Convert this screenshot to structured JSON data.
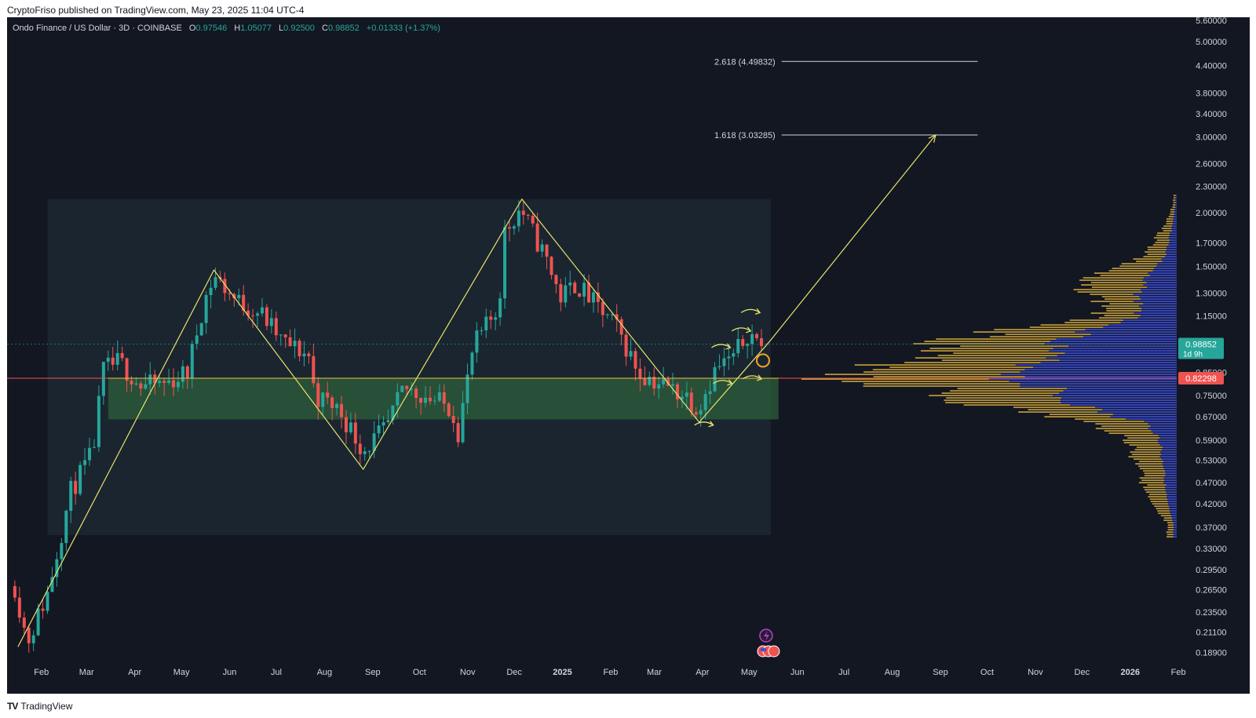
{
  "publish_line": "CryptoFriso published on TradingView.com, May 23, 2025 11:04 UTC-4",
  "header": {
    "symbol": "Ondo Finance / US Dollar · 3D · COINBASE",
    "o_label": "O",
    "o_value": "0.97546",
    "h_label": "H",
    "h_value": "1.05077",
    "l_label": "L",
    "l_value": "0.92500",
    "c_label": "C",
    "c_value": "0.98852",
    "change": "+0.01333 (+1.37%)"
  },
  "footer_logo": "TradingView",
  "colors": {
    "background": "#131722",
    "up": "#26a69a",
    "down": "#ef5350",
    "zigzag": "#e8e46a",
    "resistance_line": "#ef5350",
    "support_line": "#f0c040",
    "zone_green": "#2e5d3a",
    "range_box": "#1a2530",
    "profile_gold": "#c9a13a",
    "profile_blue": "#3d4fd8"
  },
  "chart_data": {
    "type": "candlestick",
    "scale": "log",
    "ylim": [
      0.175,
      5.7
    ],
    "x_range": [
      "2024-01-20",
      "2026-02-10"
    ],
    "y_ticks": [
      "5.60000",
      "5.00000",
      "4.40000",
      "3.80000",
      "3.40000",
      "3.00000",
      "2.60000",
      "2.30000",
      "2.00000",
      "1.70000",
      "1.50000",
      "1.30000",
      "1.15000",
      "0.98852",
      "0.85000",
      "0.82298",
      "0.75000",
      "0.67000",
      "0.59000",
      "0.53000",
      "0.47000",
      "0.42000",
      "0.37000",
      "0.33000",
      "0.29500",
      "0.26500",
      "0.23500",
      "0.21100",
      "0.18900"
    ],
    "x_ticks": [
      {
        "label": "Feb",
        "date": "2024-02-01"
      },
      {
        "label": "Mar",
        "date": "2024-03-01"
      },
      {
        "label": "Apr",
        "date": "2024-04-01"
      },
      {
        "label": "May",
        "date": "2024-05-01"
      },
      {
        "label": "Jun",
        "date": "2024-06-01"
      },
      {
        "label": "Jul",
        "date": "2024-07-01"
      },
      {
        "label": "Aug",
        "date": "2024-08-01"
      },
      {
        "label": "Sep",
        "date": "2024-09-01"
      },
      {
        "label": "Oct",
        "date": "2024-10-01"
      },
      {
        "label": "Nov",
        "date": "2024-11-01"
      },
      {
        "label": "Dec",
        "date": "2024-12-01"
      },
      {
        "label": "2025",
        "date": "2025-01-01"
      },
      {
        "label": "Feb",
        "date": "2025-02-01"
      },
      {
        "label": "Mar",
        "date": "2025-03-01"
      },
      {
        "label": "Apr",
        "date": "2025-04-01"
      },
      {
        "label": "May",
        "date": "2025-05-01"
      },
      {
        "label": "Jun",
        "date": "2025-06-01"
      },
      {
        "label": "Jul",
        "date": "2025-07-01"
      },
      {
        "label": "Aug",
        "date": "2025-08-01"
      },
      {
        "label": "Sep",
        "date": "2025-09-01"
      },
      {
        "label": "Oct",
        "date": "2025-10-01"
      },
      {
        "label": "Nov",
        "date": "2025-11-01"
      },
      {
        "label": "Dec",
        "date": "2025-12-01"
      },
      {
        "label": "2026",
        "date": "2026-01-01"
      },
      {
        "label": "Feb",
        "date": "2026-02-01"
      }
    ],
    "price_series": [
      {
        "date": "2024-01-25",
        "close": 0.27
      },
      {
        "date": "2024-02-02",
        "close": 0.2
      },
      {
        "date": "2024-02-15",
        "close": 0.26
      },
      {
        "date": "2024-03-01",
        "close": 0.45
      },
      {
        "date": "2024-03-15",
        "close": 0.55
      },
      {
        "date": "2024-03-22",
        "close": 0.86
      },
      {
        "date": "2024-04-01",
        "close": 0.9
      },
      {
        "date": "2024-04-15",
        "close": 0.79
      },
      {
        "date": "2024-05-01",
        "close": 0.8
      },
      {
        "date": "2024-05-15",
        "close": 0.85
      },
      {
        "date": "2024-05-25",
        "close": 1.22
      },
      {
        "date": "2024-06-01",
        "close": 1.43
      },
      {
        "date": "2024-06-15",
        "close": 1.25
      },
      {
        "date": "2024-07-01",
        "close": 1.17
      },
      {
        "date": "2024-07-15",
        "close": 1.0
      },
      {
        "date": "2024-08-01",
        "close": 0.93
      },
      {
        "date": "2024-08-05",
        "close": 0.75
      },
      {
        "date": "2024-08-20",
        "close": 0.7
      },
      {
        "date": "2024-09-05",
        "close": 0.56
      },
      {
        "date": "2024-09-20",
        "close": 0.63
      },
      {
        "date": "2024-10-01",
        "close": 0.78
      },
      {
        "date": "2024-10-15",
        "close": 0.75
      },
      {
        "date": "2024-11-01",
        "close": 0.7
      },
      {
        "date": "2024-11-05",
        "close": 0.62
      },
      {
        "date": "2024-11-15",
        "close": 0.98
      },
      {
        "date": "2024-12-01",
        "close": 1.2
      },
      {
        "date": "2024-12-05",
        "close": 1.8
      },
      {
        "date": "2024-12-15",
        "close": 2.05
      },
      {
        "date": "2025-01-01",
        "close": 1.55
      },
      {
        "date": "2025-01-10",
        "close": 1.27
      },
      {
        "date": "2025-01-20",
        "close": 1.37
      },
      {
        "date": "2025-02-01",
        "close": 1.22
      },
      {
        "date": "2025-02-15",
        "close": 1.08
      },
      {
        "date": "2025-03-01",
        "close": 0.85
      },
      {
        "date": "2025-03-15",
        "close": 0.8
      },
      {
        "date": "2025-04-01",
        "close": 0.75
      },
      {
        "date": "2025-04-08",
        "close": 0.7
      },
      {
        "date": "2025-04-20",
        "close": 0.87
      },
      {
        "date": "2025-05-01",
        "close": 0.92
      },
      {
        "date": "2025-05-10",
        "close": 1.05
      },
      {
        "date": "2025-05-20",
        "close": 0.98852
      }
    ],
    "candle_seed": 11,
    "zigzag_pattern": [
      {
        "date": "2024-01-27",
        "price": 0.195
      },
      {
        "date": "2024-06-01",
        "price": 1.47
      },
      {
        "date": "2024-09-05",
        "price": 0.505
      },
      {
        "date": "2024-12-16",
        "price": 2.15
      },
      {
        "date": "2025-04-09",
        "price": 0.65
      },
      {
        "date": "2025-05-24",
        "price": 1.0
      }
    ],
    "projection": [
      {
        "date": "2025-05-24",
        "price": 1.0
      },
      {
        "date": "2025-09-08",
        "price": 3.03285
      }
    ],
    "fib_levels": [
      {
        "label": "2.618 (4.49832)",
        "price": 4.49832,
        "from": "2025-06-01",
        "to": "2025-10-05"
      },
      {
        "label": "1.618 (3.03285)",
        "price": 3.03285,
        "from": "2025-06-01",
        "to": "2025-10-05"
      }
    ],
    "range_box": {
      "from": "2024-02-15",
      "to": "2025-05-25",
      "top": 2.15,
      "bottom": 0.355
    },
    "support_zone": {
      "from": "2024-03-25",
      "to": "2025-05-30",
      "top": 0.823,
      "bottom": 0.66
    },
    "resistance_line_price": 0.82298,
    "current_price": {
      "value": "0.98852",
      "price": 0.98852,
      "countdown": "1d 9h"
    },
    "resistance_label": "0.82298",
    "volume_profile": {
      "poc_price": 0.82,
      "bins": [
        {
          "price": 2.1,
          "width": 0.01
        },
        {
          "price": 1.9,
          "width": 0.03
        },
        {
          "price": 1.75,
          "width": 0.06
        },
        {
          "price": 1.6,
          "width": 0.09
        },
        {
          "price": 1.5,
          "width": 0.17
        },
        {
          "price": 1.4,
          "width": 0.3
        },
        {
          "price": 1.3,
          "width": 0.25
        },
        {
          "price": 1.2,
          "width": 0.2
        },
        {
          "price": 1.12,
          "width": 0.28
        },
        {
          "price": 1.05,
          "width": 0.55
        },
        {
          "price": 0.98,
          "width": 0.7
        },
        {
          "price": 0.92,
          "width": 0.78
        },
        {
          "price": 0.86,
          "width": 0.85
        },
        {
          "price": 0.82,
          "width": 1.0
        },
        {
          "price": 0.78,
          "width": 0.72
        },
        {
          "price": 0.74,
          "width": 0.66
        },
        {
          "price": 0.7,
          "width": 0.5
        },
        {
          "price": 0.66,
          "width": 0.3
        },
        {
          "price": 0.62,
          "width": 0.18
        },
        {
          "price": 0.58,
          "width": 0.13
        },
        {
          "price": 0.54,
          "width": 0.13
        },
        {
          "price": 0.5,
          "width": 0.09
        },
        {
          "price": 0.46,
          "width": 0.1
        },
        {
          "price": 0.42,
          "width": 0.08
        },
        {
          "price": 0.38,
          "width": 0.03
        }
      ]
    },
    "annotations": [
      {
        "type": "circle",
        "date": "2025-05-20",
        "price": 0.905
      },
      {
        "type": "curved-arrow",
        "date": "2025-04-12",
        "price": 0.64
      },
      {
        "type": "curved-arrow",
        "date": "2025-04-23",
        "price": 0.97
      },
      {
        "type": "curved-arrow",
        "date": "2025-05-06",
        "price": 1.06
      },
      {
        "type": "curved-arrow",
        "date": "2025-05-12",
        "price": 1.17
      },
      {
        "type": "curved-arrow",
        "date": "2025-04-24",
        "price": 0.8
      },
      {
        "type": "curved-arrow",
        "date": "2025-05-13",
        "price": 0.82
      }
    ],
    "event_icons": [
      {
        "name": "lightning-icon",
        "date": "2025-05-22"
      },
      {
        "name": "flag-icon",
        "date": "2025-05-22"
      }
    ]
  }
}
